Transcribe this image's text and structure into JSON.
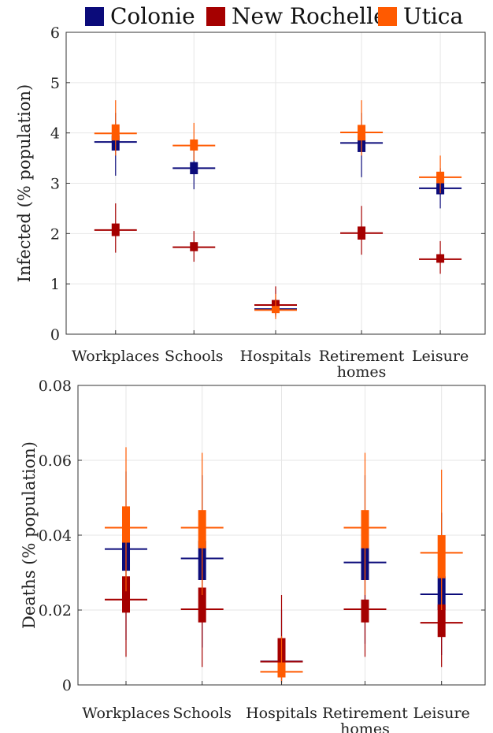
{
  "legend": {
    "colonie": {
      "label": "Colonie",
      "color": "#0b0b7a"
    },
    "new_rochelle": {
      "label": "New Rochelle",
      "color": "#a50000"
    },
    "utica": {
      "label": "Utica",
      "color": "#ff5a00"
    }
  },
  "chart_data": [
    {
      "type": "box",
      "categories": [
        [
          "Workplaces"
        ],
        [
          "Schools"
        ],
        [
          "Hospitals"
        ],
        [
          "Retirement",
          "homes"
        ],
        [
          "Leisure"
        ]
      ],
      "ylabel": "Infected (% population)",
      "ylim": [
        0,
        6
      ],
      "yticks": [
        0,
        1,
        2,
        3,
        4,
        5,
        6
      ],
      "grid": true,
      "series": [
        {
          "name": "Colonie",
          "color": "#0b0b7a",
          "median": [
            3.82,
            3.3,
            0.5,
            3.8,
            2.9
          ],
          "q1": [
            3.65,
            3.18,
            0.45,
            3.62,
            2.78
          ],
          "q3": [
            3.95,
            3.42,
            0.55,
            3.95,
            3.0
          ],
          "min": [
            3.15,
            2.88,
            0.38,
            3.12,
            2.5
          ],
          "max": [
            4.4,
            3.7,
            0.7,
            4.4,
            3.3
          ]
        },
        {
          "name": "New Rochelle",
          "color": "#a50000",
          "median": [
            2.07,
            1.73,
            0.58,
            2.01,
            1.49
          ],
          "q1": [
            1.95,
            1.65,
            0.5,
            1.88,
            1.42
          ],
          "q3": [
            2.2,
            1.83,
            0.68,
            2.14,
            1.59
          ],
          "min": [
            1.62,
            1.44,
            0.35,
            1.58,
            1.2
          ],
          "max": [
            2.6,
            2.05,
            0.95,
            2.55,
            1.85
          ]
        },
        {
          "name": "Utica",
          "color": "#ff5a00",
          "median": [
            3.99,
            3.75,
            0.48,
            4.01,
            3.12
          ],
          "q1": [
            3.85,
            3.65,
            0.42,
            3.85,
            3.0
          ],
          "q3": [
            4.17,
            3.87,
            0.56,
            4.16,
            3.23
          ],
          "min": [
            3.55,
            3.45,
            0.3,
            3.55,
            2.8
          ],
          "max": [
            4.65,
            4.2,
            0.8,
            4.65,
            3.55
          ]
        }
      ]
    },
    {
      "type": "box",
      "categories": [
        [
          "Workplaces"
        ],
        [
          "Schools"
        ],
        [
          "Hospitals"
        ],
        [
          "Retirement",
          "homes"
        ],
        [
          "Leisure"
        ]
      ],
      "ylabel": "Deaths (% population)",
      "ylim": [
        0,
        0.08
      ],
      "yticks": [
        0,
        0.02,
        0.04,
        0.06,
        0.08
      ],
      "ytick_labels": [
        "0",
        "0.02",
        "0.04",
        "0.06",
        "0.08"
      ],
      "grid": true,
      "series": [
        {
          "name": "Colonie",
          "color": "#0b0b7a",
          "median": [
            0.0363,
            0.0338,
            0.0063,
            0.0327,
            0.0242
          ],
          "q1": [
            0.0305,
            0.028,
            0.004,
            0.028,
            0.02
          ],
          "q3": [
            0.0395,
            0.0385,
            0.01,
            0.0375,
            0.029
          ],
          "min": [
            0.012,
            0.01,
            0.001,
            0.011,
            0.008
          ],
          "max": [
            0.057,
            0.056,
            0.02,
            0.056,
            0.046
          ]
        },
        {
          "name": "New Rochelle",
          "color": "#a50000",
          "median": [
            0.0228,
            0.0202,
            0.0062,
            0.0202,
            0.0166
          ],
          "q1": [
            0.0193,
            0.0167,
            0.003,
            0.0167,
            0.0128
          ],
          "q3": [
            0.029,
            0.026,
            0.0125,
            0.0228,
            0.0215
          ],
          "min": [
            0.0075,
            0.0048,
            0.0005,
            0.0075,
            0.0048
          ],
          "max": [
            0.04,
            0.036,
            0.024,
            0.036,
            0.038
          ]
        },
        {
          "name": "Utica",
          "color": "#ff5a00",
          "median": [
            0.042,
            0.042,
            0.0035,
            0.042,
            0.0353
          ],
          "q1": [
            0.038,
            0.0365,
            0.002,
            0.0365,
            0.0285
          ],
          "q3": [
            0.0477,
            0.0467,
            0.006,
            0.0467,
            0.04
          ],
          "min": [
            0.025,
            0.024,
            0.0003,
            0.024,
            0.02
          ],
          "max": [
            0.0635,
            0.062,
            0.013,
            0.062,
            0.0575
          ]
        }
      ]
    }
  ]
}
